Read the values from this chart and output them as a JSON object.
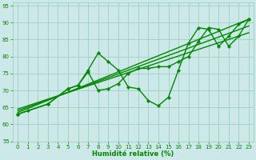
{
  "xlabel": "Humidité relative (%)",
  "bg_color": "#cce8e8",
  "grid_color": "#99ccbb",
  "line_color": "#008800",
  "xlim": [
    -0.5,
    23.5
  ],
  "ylim": [
    55,
    96
  ],
  "yticks": [
    55,
    60,
    65,
    70,
    75,
    80,
    85,
    90,
    95
  ],
  "xticks": [
    0,
    1,
    2,
    3,
    4,
    5,
    6,
    7,
    8,
    9,
    10,
    11,
    12,
    13,
    14,
    15,
    16,
    17,
    18,
    19,
    20,
    21,
    22,
    23
  ],
  "lines": [
    {
      "x": [
        0,
        1,
        3,
        5,
        6,
        7,
        8,
        9,
        10,
        11,
        12,
        13,
        14,
        15,
        16,
        17,
        18,
        19,
        20,
        21,
        22,
        23
      ],
      "y": [
        63,
        64,
        66,
        70.5,
        71.5,
        76,
        81,
        78.5,
        76,
        71,
        70.5,
        67,
        65.5,
        68,
        76,
        84,
        88.5,
        88,
        83,
        86,
        89.5,
        91
      ],
      "marker": "P",
      "markersize": 2.5,
      "linewidth": 1.0
    },
    {
      "x": [
        0,
        23
      ],
      "y": [
        63.5,
        91
      ],
      "marker": null,
      "markersize": 0,
      "linewidth": 1.0
    },
    {
      "x": [
        0,
        23
      ],
      "y": [
        64,
        89
      ],
      "marker": null,
      "markersize": 0,
      "linewidth": 1.0
    },
    {
      "x": [
        0,
        23
      ],
      "y": [
        64.5,
        87
      ],
      "marker": null,
      "markersize": 0,
      "linewidth": 1.0
    },
    {
      "x": [
        0,
        3,
        5,
        6,
        7,
        8,
        9,
        10,
        11,
        12,
        13,
        14,
        15,
        16,
        17,
        18,
        19,
        20,
        21,
        22,
        23
      ],
      "y": [
        63,
        66,
        70.5,
        71.5,
        75.5,
        70,
        70.5,
        72,
        75,
        76.5,
        76.5,
        77,
        77,
        78.5,
        80,
        84.5,
        88.5,
        88,
        83,
        86,
        91
      ],
      "marker": "P",
      "markersize": 2.5,
      "linewidth": 1.0
    }
  ]
}
